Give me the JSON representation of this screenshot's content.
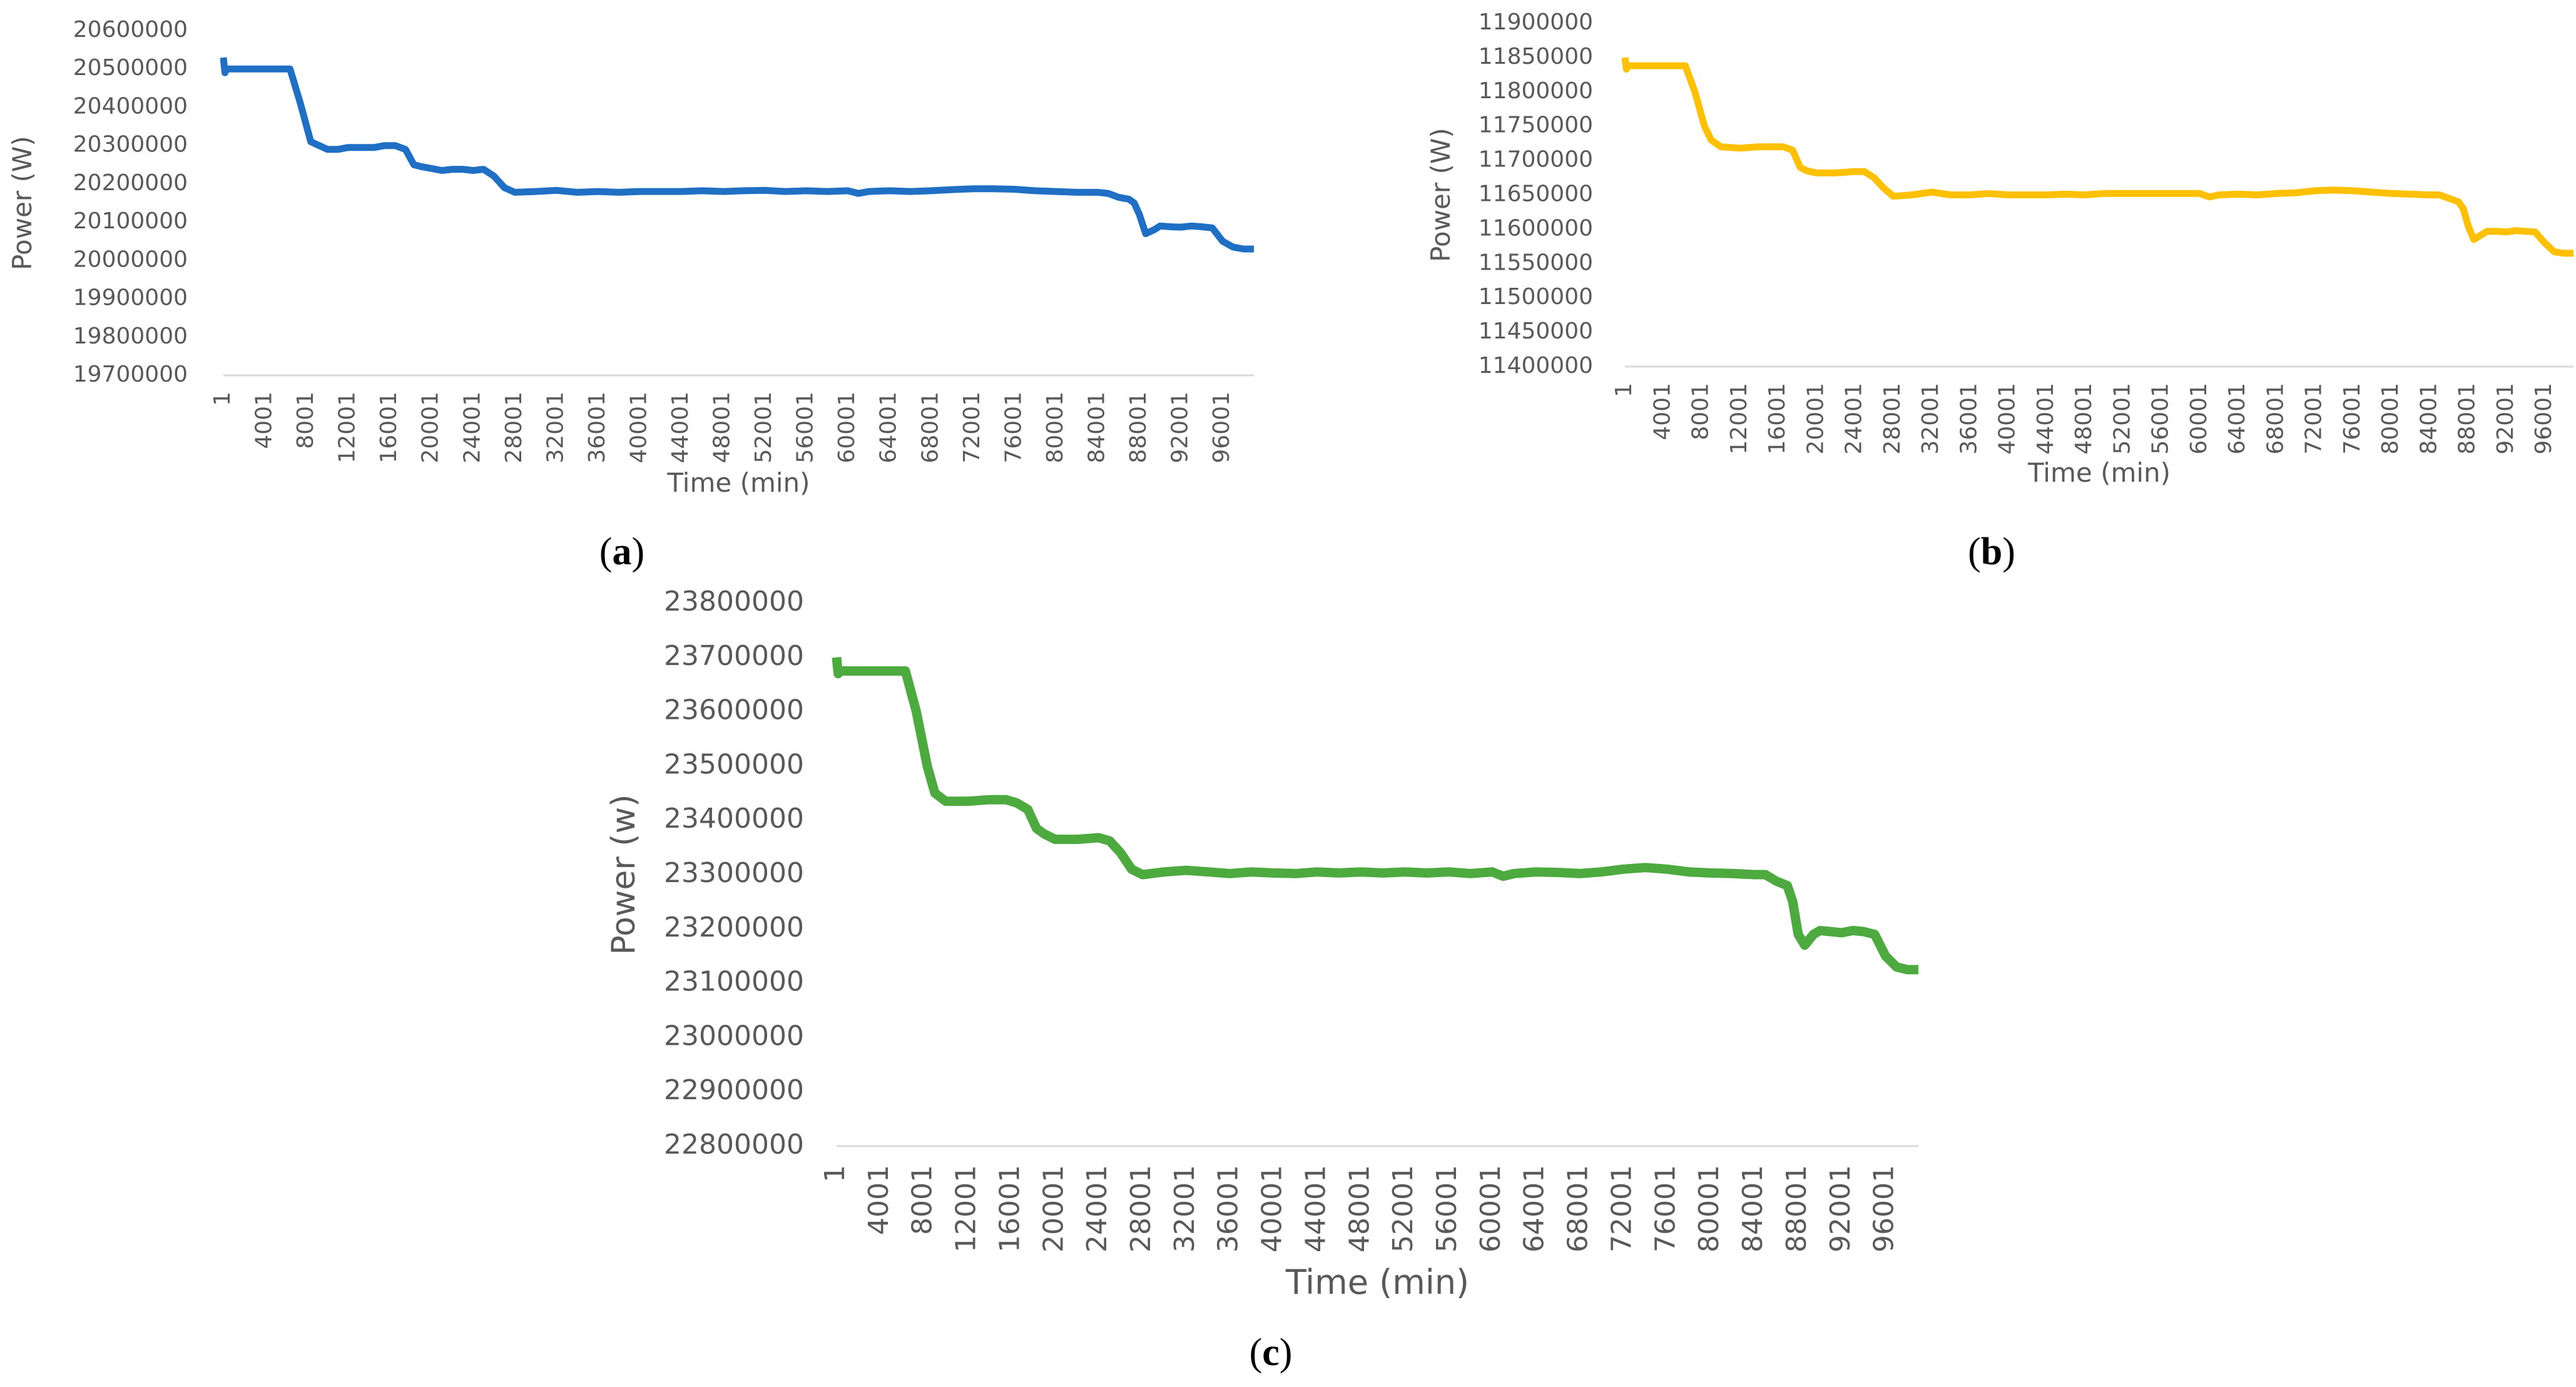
{
  "figure": {
    "captions": {
      "a_open": "(",
      "a_letter": "a",
      "a_close": ")",
      "b_open": "(",
      "b_letter": "b",
      "b_close": ")",
      "c_open": "(",
      "c_letter": "c",
      "c_close": ")"
    }
  },
  "chart_data": [
    {
      "id": "a",
      "type": "line",
      "color": "#1F6FC5",
      "xlabel": "Time (min)",
      "ylabel": "Power (W)",
      "ylim": [
        19700000,
        20600000
      ],
      "yticks": [
        19700000,
        19800000,
        19900000,
        20000000,
        20100000,
        20200000,
        20300000,
        20400000,
        20500000,
        20600000
      ],
      "xlim": [
        1,
        99000
      ],
      "xticks": [
        1,
        4001,
        8001,
        12001,
        16001,
        20001,
        24001,
        28001,
        32001,
        36001,
        40001,
        44001,
        48001,
        52001,
        56001,
        60001,
        64001,
        68001,
        72001,
        76001,
        80001,
        84001,
        88001,
        92001,
        96001
      ],
      "grid": false,
      "legend": "none",
      "x": [
        1,
        150,
        300,
        3000,
        6400,
        7400,
        8400,
        10000,
        11000,
        12000,
        14500,
        15500,
        16500,
        17500,
        18300,
        19000,
        20000,
        21000,
        22000,
        23000,
        24000,
        25000,
        26000,
        27000,
        28000,
        30000,
        32000,
        34000,
        36000,
        38000,
        40000,
        42000,
        44000,
        46000,
        48000,
        50000,
        52000,
        54000,
        56000,
        58000,
        60000,
        61000,
        62000,
        64000,
        66000,
        68000,
        70000,
        72000,
        74000,
        76000,
        78000,
        80000,
        82000,
        84000,
        85000,
        86000,
        87000,
        87500,
        88000,
        88600,
        89400,
        90000,
        91000,
        92000,
        93000,
        94000,
        95000,
        96000,
        97000,
        98000,
        99000
      ],
      "y": [
        20530000,
        20490000,
        20500000,
        20500000,
        20500000,
        20410000,
        20310000,
        20290000,
        20290000,
        20295000,
        20295000,
        20300000,
        20300000,
        20290000,
        20250000,
        20245000,
        20240000,
        20235000,
        20238000,
        20238000,
        20235000,
        20238000,
        20220000,
        20190000,
        20178000,
        20180000,
        20183000,
        20178000,
        20180000,
        20178000,
        20180000,
        20180000,
        20180000,
        20182000,
        20180000,
        20182000,
        20183000,
        20180000,
        20182000,
        20180000,
        20182000,
        20175000,
        20180000,
        20182000,
        20180000,
        20182000,
        20185000,
        20187000,
        20187000,
        20186000,
        20182000,
        20180000,
        20178000,
        20178000,
        20175000,
        20165000,
        20160000,
        20150000,
        20120000,
        20070000,
        20080000,
        20090000,
        20088000,
        20087000,
        20090000,
        20088000,
        20085000,
        20050000,
        20035000,
        20030000,
        20030000
      ]
    },
    {
      "id": "b",
      "type": "line",
      "color": "#FFC000",
      "xlabel": "Time (min)",
      "ylabel": "Power (W)",
      "ylim": [
        11400000,
        11900000
      ],
      "yticks": [
        11400000,
        11450000,
        11500000,
        11550000,
        11600000,
        11650000,
        11700000,
        11750000,
        11800000,
        11850000,
        11900000
      ],
      "xlim": [
        1,
        99000
      ],
      "xticks": [
        1,
        4001,
        8001,
        12001,
        16001,
        20001,
        24001,
        28001,
        32001,
        36001,
        40001,
        44001,
        48001,
        52001,
        56001,
        60001,
        64001,
        68001,
        72001,
        76001,
        80001,
        84001,
        88001,
        92001,
        96001
      ],
      "grid": false,
      "legend": "none",
      "x": [
        1,
        150,
        300,
        3000,
        6300,
        7300,
        8300,
        9000,
        10000,
        12000,
        14000,
        15500,
        16500,
        17500,
        18300,
        19000,
        20000,
        22000,
        24000,
        25000,
        26000,
        27000,
        28000,
        30000,
        32000,
        34000,
        36000,
        38000,
        40000,
        42000,
        44000,
        46000,
        48000,
        50000,
        52000,
        54000,
        56000,
        58000,
        60000,
        61000,
        62000,
        64000,
        66000,
        68000,
        70000,
        72000,
        74000,
        76000,
        78000,
        80000,
        82000,
        84000,
        85000,
        86000,
        87000,
        87500,
        88000,
        88600,
        89400,
        90000,
        91000,
        92000,
        93000,
        94000,
        95000,
        96000,
        97000,
        98000,
        99000
      ],
      "y": [
        11850000,
        11833000,
        11838000,
        11838000,
        11838000,
        11800000,
        11750000,
        11730000,
        11720000,
        11718000,
        11720000,
        11720000,
        11720000,
        11715000,
        11690000,
        11685000,
        11682000,
        11682000,
        11684000,
        11684000,
        11675000,
        11660000,
        11648000,
        11650000,
        11654000,
        11650000,
        11650000,
        11652000,
        11650000,
        11650000,
        11650000,
        11651000,
        11650000,
        11652000,
        11652000,
        11652000,
        11652000,
        11652000,
        11652000,
        11647000,
        11650000,
        11651000,
        11650000,
        11652000,
        11653000,
        11656000,
        11657000,
        11656000,
        11654000,
        11652000,
        11651000,
        11650000,
        11650000,
        11645000,
        11640000,
        11630000,
        11605000,
        11585000,
        11592000,
        11597000,
        11597000,
        11596000,
        11598000,
        11597000,
        11596000,
        11580000,
        11567000,
        11565000,
        11565000
      ]
    },
    {
      "id": "c",
      "type": "line",
      "color": "#4CAA3F",
      "xlabel": "Time (min)",
      "ylabel": "Power (w)",
      "ylim": [
        22800000,
        23800000
      ],
      "yticks": [
        22800000,
        22900000,
        23000000,
        23100000,
        23200000,
        23300000,
        23400000,
        23500000,
        23600000,
        23700000,
        23800000
      ],
      "xlim": [
        1,
        99000
      ],
      "xticks": [
        1,
        4001,
        8001,
        12001,
        16001,
        20001,
        24001,
        28001,
        32001,
        36001,
        40001,
        44001,
        48001,
        52001,
        56001,
        60001,
        64001,
        68001,
        72001,
        76001,
        80001,
        84001,
        88001,
        92001,
        96001
      ],
      "grid": false,
      "legend": "none",
      "x": [
        1,
        150,
        300,
        3000,
        6300,
        7300,
        8300,
        9000,
        10000,
        12000,
        14000,
        15500,
        16500,
        17500,
        18300,
        19000,
        20000,
        22000,
        24000,
        25000,
        26000,
        27000,
        28000,
        30000,
        32000,
        34000,
        36000,
        38000,
        40000,
        42000,
        44000,
        46000,
        48000,
        50000,
        52000,
        54000,
        56000,
        58000,
        60000,
        61000,
        62000,
        64000,
        66000,
        68000,
        70000,
        72000,
        74000,
        76000,
        78000,
        80000,
        82000,
        84000,
        85000,
        86000,
        87000,
        87500,
        88000,
        88600,
        89400,
        90000,
        91000,
        92000,
        93000,
        94000,
        95000,
        96000,
        97000,
        98000,
        99000
      ],
      "y": [
        23700000,
        23670000,
        23675000,
        23675000,
        23675000,
        23600000,
        23500000,
        23450000,
        23435000,
        23435000,
        23438000,
        23438000,
        23432000,
        23420000,
        23385000,
        23375000,
        23365000,
        23365000,
        23368000,
        23362000,
        23340000,
        23310000,
        23300000,
        23305000,
        23308000,
        23305000,
        23302000,
        23305000,
        23303000,
        23302000,
        23305000,
        23303000,
        23305000,
        23303000,
        23305000,
        23303000,
        23305000,
        23302000,
        23305000,
        23297000,
        23302000,
        23305000,
        23304000,
        23302000,
        23305000,
        23310000,
        23313000,
        23310000,
        23305000,
        23303000,
        23302000,
        23300000,
        23300000,
        23288000,
        23280000,
        23250000,
        23190000,
        23170000,
        23190000,
        23197000,
        23195000,
        23193000,
        23197000,
        23195000,
        23190000,
        23150000,
        23130000,
        23125000,
        23125000
      ]
    }
  ]
}
